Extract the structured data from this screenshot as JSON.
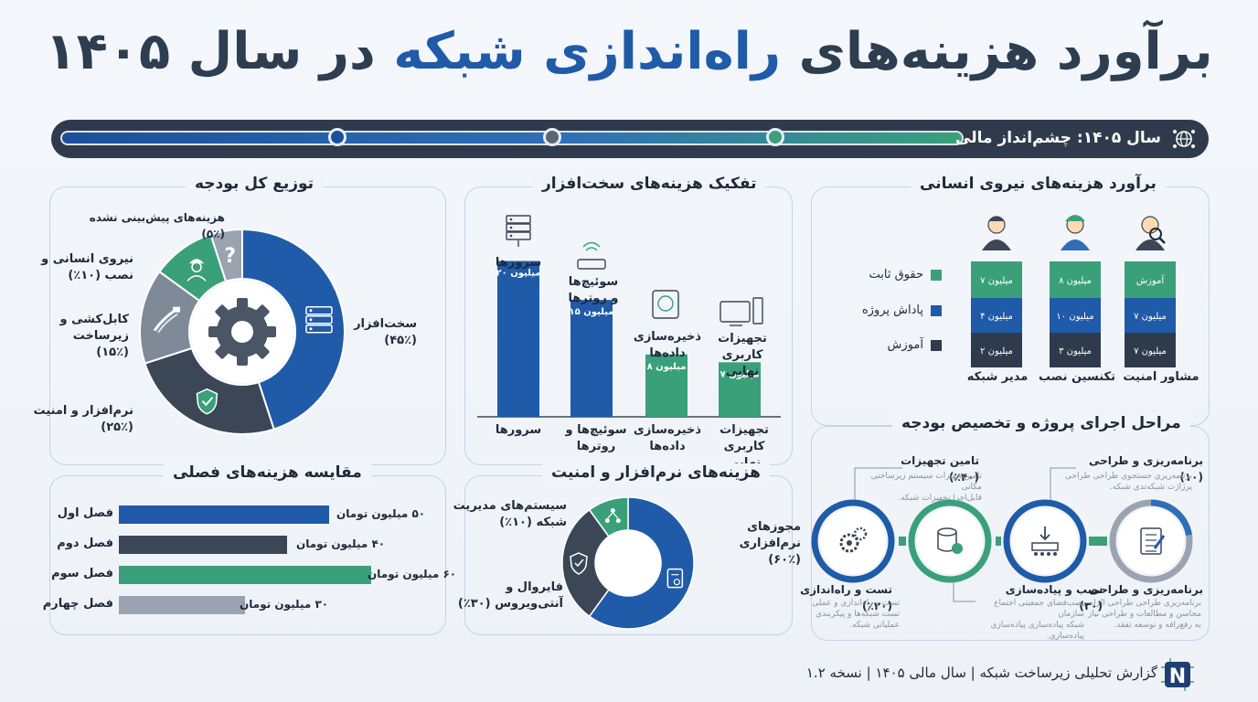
{
  "title": {
    "part1": "برآورد هزینه‌های",
    "part2": "راه‌اندازی شبکه",
    "part3": "در سال ۱۴۰۵"
  },
  "timeline": {
    "label": "سال ۱۴۰۵: چشم‌انداز مالی",
    "icon": "network-globe-icon"
  },
  "colors": {
    "blue": "#1f5ba8",
    "dark": "#3b4656",
    "green": "#3aa07a",
    "gray": "#7f8a99",
    "accent": "#2c3e50"
  },
  "budget": {
    "title": "توزیع کل بودجه",
    "center_icon": "gear-icon",
    "segments": [
      {
        "label": "سخت‌افزار\n(۴۵٪)",
        "icon": "server-icon"
      },
      {
        "label": "نرم‌افزار و امنیت\n(۲۵٪)",
        "icon": "shield-check-icon"
      },
      {
        "label": "کابل‌کشی و\nزیرساخت\n(۱۵٪)",
        "icon": "cable-icon"
      },
      {
        "label": "نیروی انسانی و\nنصب (۱۰٪)",
        "icon": "worker-icon"
      },
      {
        "label": "هزینه‌های پیش‌بینی نشده\n(۵٪)",
        "icon": "question-icon"
      }
    ]
  },
  "hardware": {
    "title": "تفکیک هزینه‌های سخت‌افزار",
    "bars": [
      {
        "top_label": "سرورها",
        "value_label": "۲۰ میلیون",
        "x_label": "سرورها",
        "icon": "server-rack-icon"
      },
      {
        "top_label": "سوئیچ‌ها\nو روترها",
        "value_label": "۱۵ میلیون",
        "x_label": "سوئیچ‌ها و\nروترها",
        "icon": "router-icon"
      },
      {
        "top_label": "ذخیره‌سازی\nداده‌ها",
        "value_label": "۸ میلیون",
        "x_label": "ذخیره‌سازی\nداده‌ها",
        "icon": "hard-disk-icon"
      },
      {
        "top_label": "تجهیزات\nکاربری نهایی",
        "value_label": "۷ میلیون",
        "x_label": "تجهیزات کاربری\nنهایی",
        "icon": "desktop-computer-icon"
      }
    ]
  },
  "hr": {
    "title": "برآورد هزینه‌های نیروی انسانی",
    "legend": [
      "حقوق ثابت",
      "پاداش پروژه",
      "آموزش"
    ],
    "roles": [
      {
        "name": "مدیر شبکه",
        "icon": "manager-icon",
        "segments": [
          "۷ میلیون",
          "۴ میلیون",
          "۲ میلیون"
        ]
      },
      {
        "name": "تکنسین نصب",
        "icon": "technician-icon",
        "segments": [
          "۸ میلیون",
          "۱۰ میلیون",
          "۳ میلیون"
        ]
      },
      {
        "name": "مشاور امنیت",
        "icon": "security-consultant-icon",
        "segments": [
          "آموزش",
          "۷ میلیون",
          "۷ میلیون"
        ]
      }
    ]
  },
  "seasonal": {
    "title": "مقایسه هزینه‌های فصلی",
    "rows": [
      {
        "label": "فصل اول",
        "value_label": "۵۰ میلیون تومان"
      },
      {
        "label": "فصل دوم",
        "value_label": "۴۰ میلیون تومان"
      },
      {
        "label": "فصل سوم",
        "value_label": "۶۰ میلیون تومان"
      },
      {
        "label": "فصل چهارم",
        "value_label": "۳۰ میلیون تومان"
      }
    ]
  },
  "software": {
    "title": "هزینه‌های نرم‌افزار و امنیت",
    "segments": [
      {
        "label": "مجوزهای نرم‌افزاری\n(۶۰٪)",
        "icon": "license-icon"
      },
      {
        "label": "فایروال و\nآنتی‌ویروس (۳۰٪)",
        "icon": "firewall-shield-icon"
      },
      {
        "label": "سیستم‌های مدیریت\nشبکه (۱۰٪)",
        "icon": "network-tree-icon"
      }
    ]
  },
  "phases": {
    "title": "مراحل اجرای پروژه و تخصیص بودجه",
    "steps": [
      {
        "top_title": "برنامه‌ریزی و طراحی (۱۰)",
        "top_desc": "برنامه‌ریزی جستجوی طراحی طراحی\nپرژاژت شبکه‌ندی شبکه.",
        "bottom_title": "برنامه‌ریزی و طراحی",
        "bottom_desc": "برنامه‌ریزی طراحی طراحی الزامی\nمحاسن و مطالعات و طراحی نیاز\nبه رفع‌رافه و توسعه تفقد.",
        "icon": "planning-document-icon"
      },
      {
        "top_title": "",
        "top_desc": "",
        "bottom_title": "نصب و پیاده‌سازی (۳۰)",
        "bottom_desc": "نصب‌فضای جمعیتی اجتماع‌ سازمان\nشبکه پیاده‌سازی پیاده‌سازی\nپیاده‌سازی.",
        "icon": "install-conveyor-icon"
      },
      {
        "top_title": "تامین تجهیزات (۴۰٪)",
        "top_desc": "تامین‌تجهیزات سیستم زیرساختی مکانی\nقابل‌اجرا تجهیزات شبکه.",
        "bottom_title": "",
        "bottom_desc": "",
        "icon": "database-cart-icon"
      },
      {
        "top_title": "",
        "top_desc": "",
        "bottom_title": "تست و راه‌اندازی (۲۰٪)",
        "bottom_desc": "تست و راه‌اندازی و عملی\nتست شبکه‌ها و پیکربندی\nعملیاتی شبکه.",
        "icon": "testing-gears-icon"
      }
    ]
  },
  "footer": {
    "text": "گزارش تحلیلی زیرساخت شبکه | سال مالی ۱۴۰۵ | نسخه ۱.۲",
    "logo": "network-logo-icon"
  },
  "chart_data": [
    {
      "type": "pie",
      "title": "توزیع کل بودجه",
      "categories": [
        "سخت‌افزار",
        "نرم‌افزار و امنیت",
        "کابل‌کشی و زیرساخت",
        "نیروی انسانی و نصب",
        "هزینه‌های پیش‌بینی نشده"
      ],
      "values": [
        45,
        25,
        15,
        10,
        5
      ]
    },
    {
      "type": "bar",
      "title": "تفکیک هزینه‌های سخت‌افزار",
      "categories": [
        "سرورها",
        "سوئیچ‌ها و روترها",
        "ذخیره‌سازی داده‌ها",
        "تجهیزات کاربری نهایی"
      ],
      "values": [
        20,
        15,
        8,
        7
      ],
      "ylim": [
        0,
        22
      ]
    },
    {
      "type": "bar",
      "title": "برآورد هزینه‌های نیروی انسانی",
      "stacked": true,
      "categories": [
        "مدیر شبکه",
        "تکنسین نصب",
        "مشاور امنیت"
      ],
      "series": [
        {
          "name": "حقوق ثابت",
          "values": [
            7,
            8,
            null
          ]
        },
        {
          "name": "پاداش پروژه",
          "values": [
            4,
            10,
            7
          ]
        },
        {
          "name": "آموزش",
          "values": [
            2,
            3,
            7
          ]
        }
      ]
    },
    {
      "type": "bar",
      "orientation": "horizontal",
      "title": "مقایسه هزینه‌های فصلی",
      "categories": [
        "فصل اول",
        "فصل دوم",
        "فصل سوم",
        "فصل چهارم"
      ],
      "values": [
        50,
        40,
        60,
        30
      ],
      "xlim": [
        0,
        60
      ]
    },
    {
      "type": "pie",
      "title": "هزینه‌های نرم‌افزار و امنیت",
      "categories": [
        "مجوزهای نرم‌افزاری",
        "فایروال و آنتی‌ویروس",
        "سیستم‌های مدیریت شبکه"
      ],
      "values": [
        60,
        30,
        10
      ]
    }
  ]
}
